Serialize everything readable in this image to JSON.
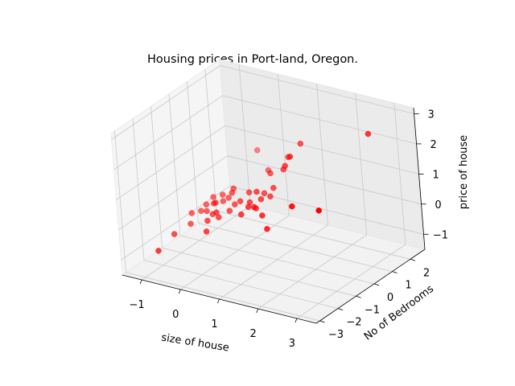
{
  "chart_data": {
    "type": "scatter3d",
    "title": "Housing prices in Port-land, Oregon.",
    "xlabel": "size of house",
    "ylabel": "No of Bedrooms",
    "zlabel": "price of house",
    "xlim": [
      -1.5,
      3.5
    ],
    "ylim": [
      -3.2,
      2.8
    ],
    "zlim": [
      -1.5,
      3.2
    ],
    "xticks": [
      -1,
      0,
      1,
      2,
      3
    ],
    "yticks": [
      -3,
      -2,
      -1,
      0,
      1,
      2
    ],
    "zticks": [
      -1,
      0,
      1,
      2,
      3
    ],
    "grid": true,
    "marker_color": "#ff0000",
    "points": [
      {
        "x": 3.1,
        "y": 1.1,
        "z": 2.9
      },
      {
        "x": 2.8,
        "y": -1.2,
        "z": 1.2
      },
      {
        "x": 2.0,
        "y": -1.0,
        "z": 1.0
      },
      {
        "x": 1.3,
        "y": 1.1,
        "z": 2.0
      },
      {
        "x": 1.2,
        "y": 0.7,
        "z": 1.7
      },
      {
        "x": 1.1,
        "y": 0.6,
        "z": 1.4
      },
      {
        "x": 1.0,
        "y": 1.0,
        "z": 1.5
      },
      {
        "x": 0.9,
        "y": 0.9,
        "z": 1.1
      },
      {
        "x": 0.5,
        "y": 1.0,
        "z": 0.8
      },
      {
        "x": 0.2,
        "y": 1.5,
        "z": 0.6
      },
      {
        "x": -0.3,
        "y": 2.0,
        "z": 0.9
      },
      {
        "x": 0.6,
        "y": -0.2,
        "z": 0.2
      },
      {
        "x": 0.9,
        "y": -0.4,
        "z": 0.1
      },
      {
        "x": 1.1,
        "y": -0.6,
        "z": -0.2
      },
      {
        "x": 0.4,
        "y": 0.4,
        "z": 0.4
      },
      {
        "x": 0.1,
        "y": 0.6,
        "z": 0.2
      },
      {
        "x": 0.3,
        "y": 0.2,
        "z": 0.1
      },
      {
        "x": 0.6,
        "y": 0.2,
        "z": 0.3
      },
      {
        "x": 0.7,
        "y": 0.5,
        "z": 0.3
      },
      {
        "x": 0.5,
        "y": 0.6,
        "z": 0.3
      },
      {
        "x": 0.7,
        "y": 0.7,
        "z": 0.5
      },
      {
        "x": 0.4,
        "y": -0.1,
        "z": 0.1
      },
      {
        "x": 0.5,
        "y": 0.1,
        "z": 0.0
      },
      {
        "x": 0.3,
        "y": -0.3,
        "z": -0.1
      },
      {
        "x": 0.0,
        "y": 0.3,
        "z": 0.0
      },
      {
        "x": -0.1,
        "y": 0.2,
        "z": -0.1
      },
      {
        "x": -0.3,
        "y": 0.5,
        "z": 0.1
      },
      {
        "x": -0.4,
        "y": 0.5,
        "z": -0.1
      },
      {
        "x": -0.3,
        "y": 0.6,
        "z": 0.2
      },
      {
        "x": -0.4,
        "y": -0.2,
        "z": -0.3
      },
      {
        "x": -0.6,
        "y": 0.2,
        "z": -0.2
      },
      {
        "x": -0.5,
        "y": 0.4,
        "z": -0.2
      },
      {
        "x": -0.6,
        "y": 0.6,
        "z": -0.1
      },
      {
        "x": -0.7,
        "y": 0.3,
        "z": -0.3
      },
      {
        "x": -0.8,
        "y": 0.5,
        "z": -0.2
      },
      {
        "x": -0.6,
        "y": -0.3,
        "z": -0.6
      },
      {
        "x": -0.8,
        "y": 0.1,
        "z": -0.5
      },
      {
        "x": -0.5,
        "y": -0.6,
        "z": -0.8
      },
      {
        "x": -0.9,
        "y": 0.3,
        "z": -0.4
      },
      {
        "x": -0.6,
        "y": 0.0,
        "z": -0.5
      },
      {
        "x": -1.2,
        "y": 0.1,
        "z": -0.7
      },
      {
        "x": -1.0,
        "y": 0.2,
        "z": -0.6
      },
      {
        "x": -1.3,
        "y": -0.7,
        "z": -1.1
      },
      {
        "x": -1.1,
        "y": -0.2,
        "z": -0.9
      },
      {
        "x": -1.4,
        "y": -1.4,
        "z": -1.4
      },
      {
        "x": -0.4,
        "y": -0.1,
        "z": -0.5
      },
      {
        "x": -0.2,
        "y": 0.1,
        "z": -0.3
      }
    ]
  }
}
